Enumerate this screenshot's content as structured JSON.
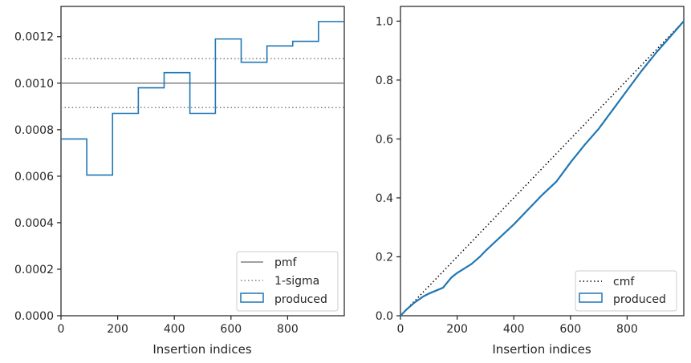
{
  "chart_data": [
    {
      "type": "step",
      "xlabel": "Insertion indices",
      "ylabel": "",
      "xlim": [
        0,
        1000
      ],
      "ylim": [
        0,
        0.00133
      ],
      "xticks": [
        0,
        200,
        400,
        600,
        800
      ],
      "xtick_labels": [
        "0",
        "200",
        "400",
        "600",
        "800"
      ],
      "yticks": [
        0,
        0.0002,
        0.0004,
        0.0006,
        0.0008,
        0.001,
        0.0012
      ],
      "ytick_labels": [
        "0.0000",
        "0.0002",
        "0.0004",
        "0.0006",
        "0.0008",
        "0.0010",
        "0.0012"
      ],
      "series": [
        {
          "name": "pmf",
          "style": "solid",
          "color": "#808080",
          "y": 0.001
        },
        {
          "name": "1-sigma",
          "style": "dotted",
          "color": "#808080",
          "y": [
            0.000895,
            0.001105
          ]
        },
        {
          "name": "produced",
          "style": "step",
          "color": "#1f77b4",
          "bin_edges": [
            0,
            91,
            182,
            273,
            364,
            455,
            545,
            636,
            727,
            818,
            909,
            1000
          ],
          "values": [
            0.00076,
            0.000605,
            0.00087,
            0.00098,
            0.001045,
            0.00087,
            0.00119,
            0.00109,
            0.00116,
            0.00118,
            0.001265
          ]
        }
      ],
      "legend": {
        "position": "lower-right",
        "entries": [
          "pmf",
          "1-sigma",
          "produced"
        ]
      },
      "grid": false
    },
    {
      "type": "line",
      "xlabel": "Insertion indices",
      "ylabel": "",
      "xlim": [
        0,
        1000
      ],
      "ylim": [
        0,
        1.05
      ],
      "xticks": [
        0,
        200,
        400,
        600,
        800
      ],
      "xtick_labels": [
        "0",
        "200",
        "400",
        "600",
        "800"
      ],
      "yticks": [
        0,
        0.2,
        0.4,
        0.6,
        0.8,
        1.0
      ],
      "ytick_labels": [
        "0.0",
        "0.2",
        "0.4",
        "0.6",
        "0.8",
        "1.0"
      ],
      "series": [
        {
          "name": "cmf",
          "style": "dotted",
          "color": "#000000",
          "x": [
            0,
            1000
          ],
          "y": [
            0,
            1.0
          ]
        },
        {
          "name": "produced",
          "style": "solid",
          "color": "#1f77b4",
          "x": [
            0,
            20,
            50,
            80,
            100,
            150,
            180,
            200,
            250,
            280,
            300,
            350,
            400,
            450,
            500,
            550,
            600,
            650,
            700,
            750,
            800,
            850,
            900,
            950,
            1000
          ],
          "y": [
            0,
            0.02,
            0.045,
            0.065,
            0.075,
            0.095,
            0.13,
            0.145,
            0.175,
            0.2,
            0.22,
            0.265,
            0.31,
            0.36,
            0.41,
            0.455,
            0.52,
            0.58,
            0.635,
            0.7,
            0.765,
            0.83,
            0.89,
            0.945,
            1.0
          ]
        }
      ],
      "legend": {
        "position": "lower-right",
        "entries": [
          "cmf",
          "produced"
        ]
      },
      "grid": false
    }
  ]
}
